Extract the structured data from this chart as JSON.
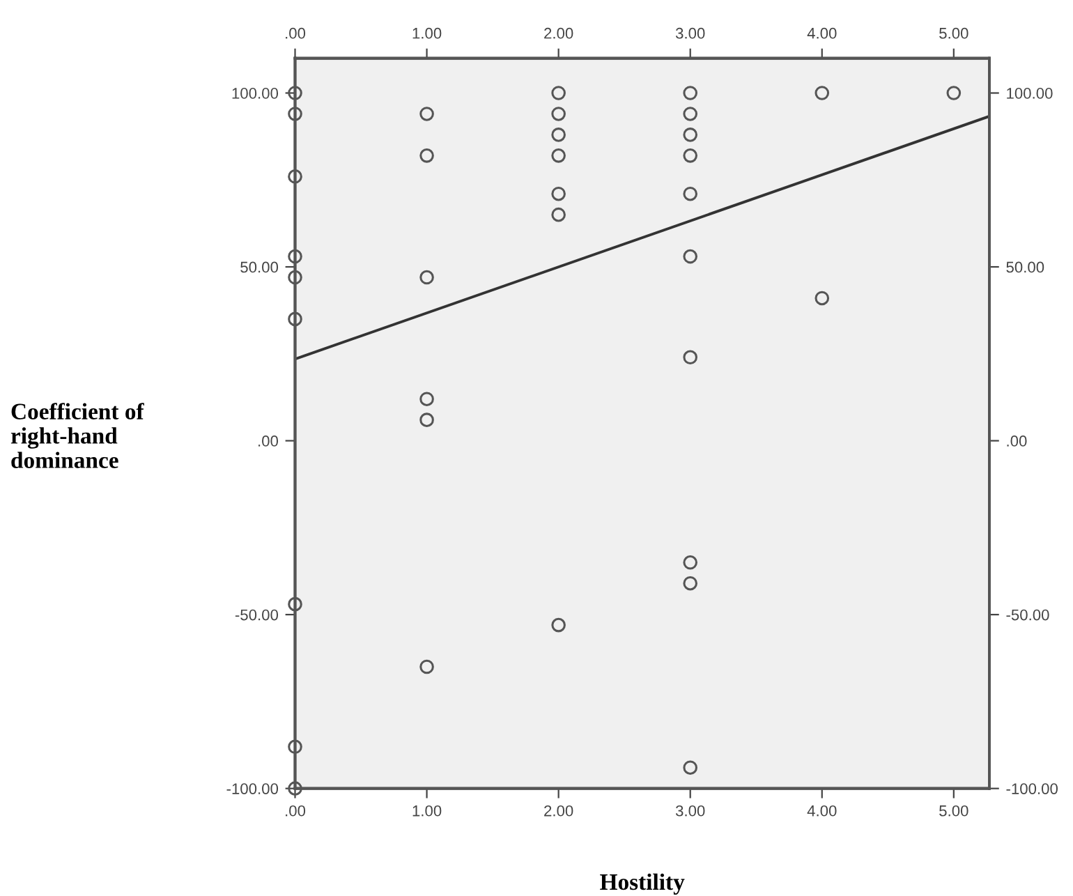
{
  "chart_data": {
    "type": "scatter",
    "xlabel": "Hostility",
    "ylabel": "Coefficient of\nright-hand\ndominance",
    "xlim": [
      0,
      5.27
    ],
    "ylim": [
      -100,
      110
    ],
    "xticks": [
      {
        "value": 0,
        "label": ".00"
      },
      {
        "value": 1,
        "label": "1.00"
      },
      {
        "value": 2,
        "label": "2.00"
      },
      {
        "value": 3,
        "label": "3.00"
      },
      {
        "value": 4,
        "label": "4.00"
      },
      {
        "value": 5,
        "label": "5.00"
      }
    ],
    "x2lim": [
      0,
      5.27
    ],
    "x2ticks": [
      {
        "value": 0,
        "label": ".00"
      },
      {
        "value": 1,
        "label": "1.00"
      },
      {
        "value": 2,
        "label": "2.00"
      },
      {
        "value": 3,
        "label": "3.00"
      },
      {
        "value": 4,
        "label": "4.00"
      },
      {
        "value": 5,
        "label": "5.00"
      }
    ],
    "yticks": [
      {
        "value": -100,
        "label": "-100.00"
      },
      {
        "value": -50,
        "label": "-50.00"
      },
      {
        "value": 0,
        "label": ".00"
      },
      {
        "value": 50,
        "label": "50.00"
      },
      {
        "value": 100,
        "label": "100.00"
      }
    ],
    "y2lim": [
      -100,
      110
    ],
    "y2ticks": [
      {
        "value": -100,
        "label": "-100.00"
      },
      {
        "value": -50,
        "label": "-50.00"
      },
      {
        "value": 0,
        "label": ".00"
      },
      {
        "value": 50,
        "label": "50.00"
      },
      {
        "value": 100,
        "label": "100.00"
      }
    ],
    "marker": "circle",
    "grid": false,
    "legend": false,
    "series": [
      {
        "color": "#555555",
        "x": [
          0,
          0,
          0,
          0,
          0,
          0,
          0,
          0,
          0,
          1,
          1,
          1,
          1,
          1,
          1,
          2,
          2,
          2,
          2,
          2,
          2,
          2,
          3,
          3,
          3,
          3,
          3,
          3,
          3,
          3,
          3,
          3,
          4,
          4,
          5
        ],
        "values": [
          100,
          94,
          76,
          53,
          47,
          35,
          -47,
          -88,
          -100,
          94,
          82,
          47,
          12,
          6,
          -65,
          100,
          94,
          88,
          82,
          71,
          65,
          -53,
          100,
          94,
          88,
          82,
          71,
          53,
          24,
          -35,
          -41,
          -94,
          100,
          41,
          100
        ]
      },
      {
        "type": "line",
        "color": "#333333",
        "marker": "none",
        "x": [
          0,
          5.27
        ],
        "values": [
          23.5,
          93.3
        ]
      }
    ]
  }
}
